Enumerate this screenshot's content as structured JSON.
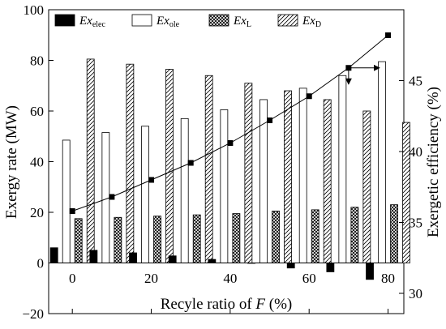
{
  "chart_data": {
    "type": "bar",
    "xlabel": "Recyle ratio of F (%)",
    "xlabel_parts": [
      "Recyle ratio of ",
      "F",
      " (%)"
    ],
    "ylabel_left": "Exergy rate (MW)",
    "ylabel_right": "Exergetic efficiency (%)",
    "ylim_left": [
      -20,
      100
    ],
    "ylim_right": [
      28.571,
      50
    ],
    "left_ticks": [
      -20,
      0,
      20,
      40,
      60,
      80,
      100
    ],
    "left_tick_labels": [
      "−20",
      "0",
      "20",
      "40",
      "60",
      "80",
      "100"
    ],
    "right_ticks": [
      30,
      35,
      40,
      45
    ],
    "right_tick_labels": [
      "30",
      "35",
      "40",
      "45"
    ],
    "x_ticks": [
      0,
      20,
      40,
      60,
      80
    ],
    "x_tick_labels": [
      "0",
      "20",
      "40",
      "60",
      "80"
    ],
    "xlim": [
      -6,
      84
    ],
    "grid": false,
    "legend_position": "top",
    "categories": [
      0,
      10,
      20,
      30,
      40,
      50,
      60,
      70,
      80
    ],
    "series": [
      {
        "name": "Ex",
        "subscript": "elec",
        "pattern": "solid-black",
        "values": [
          6,
          5,
          4,
          2.8,
          1.4,
          0,
          -2,
          -3.5,
          -6.5
        ]
      },
      {
        "name": "Ex",
        "subscript": "ole",
        "pattern": "white",
        "values": [
          48.5,
          51.5,
          54,
          57,
          60.5,
          64.5,
          69,
          74,
          79.5
        ]
      },
      {
        "name": "Ex",
        "subscript": "L",
        "pattern": "crosshatch",
        "values": [
          17.5,
          18,
          18.5,
          19,
          19.5,
          20.5,
          21,
          22,
          23
        ]
      },
      {
        "name": "Ex",
        "subscript": "D",
        "pattern": "diagonal",
        "values": [
          80.5,
          78.5,
          76.5,
          74,
          71,
          68,
          64.5,
          60,
          55.5
        ]
      }
    ],
    "efficiency_line": {
      "axis": "right",
      "marker": "square",
      "x": [
        0,
        10,
        20,
        30,
        40,
        50,
        60,
        70,
        80
      ],
      "values": [
        35.8,
        36.8,
        38.0,
        39.2,
        40.6,
        42.2,
        43.9,
        45.9,
        48.2
      ]
    },
    "annotations": [
      {
        "type": "arrow",
        "from_point_index": 7,
        "directions": [
          "down",
          "right"
        ]
      }
    ]
  }
}
